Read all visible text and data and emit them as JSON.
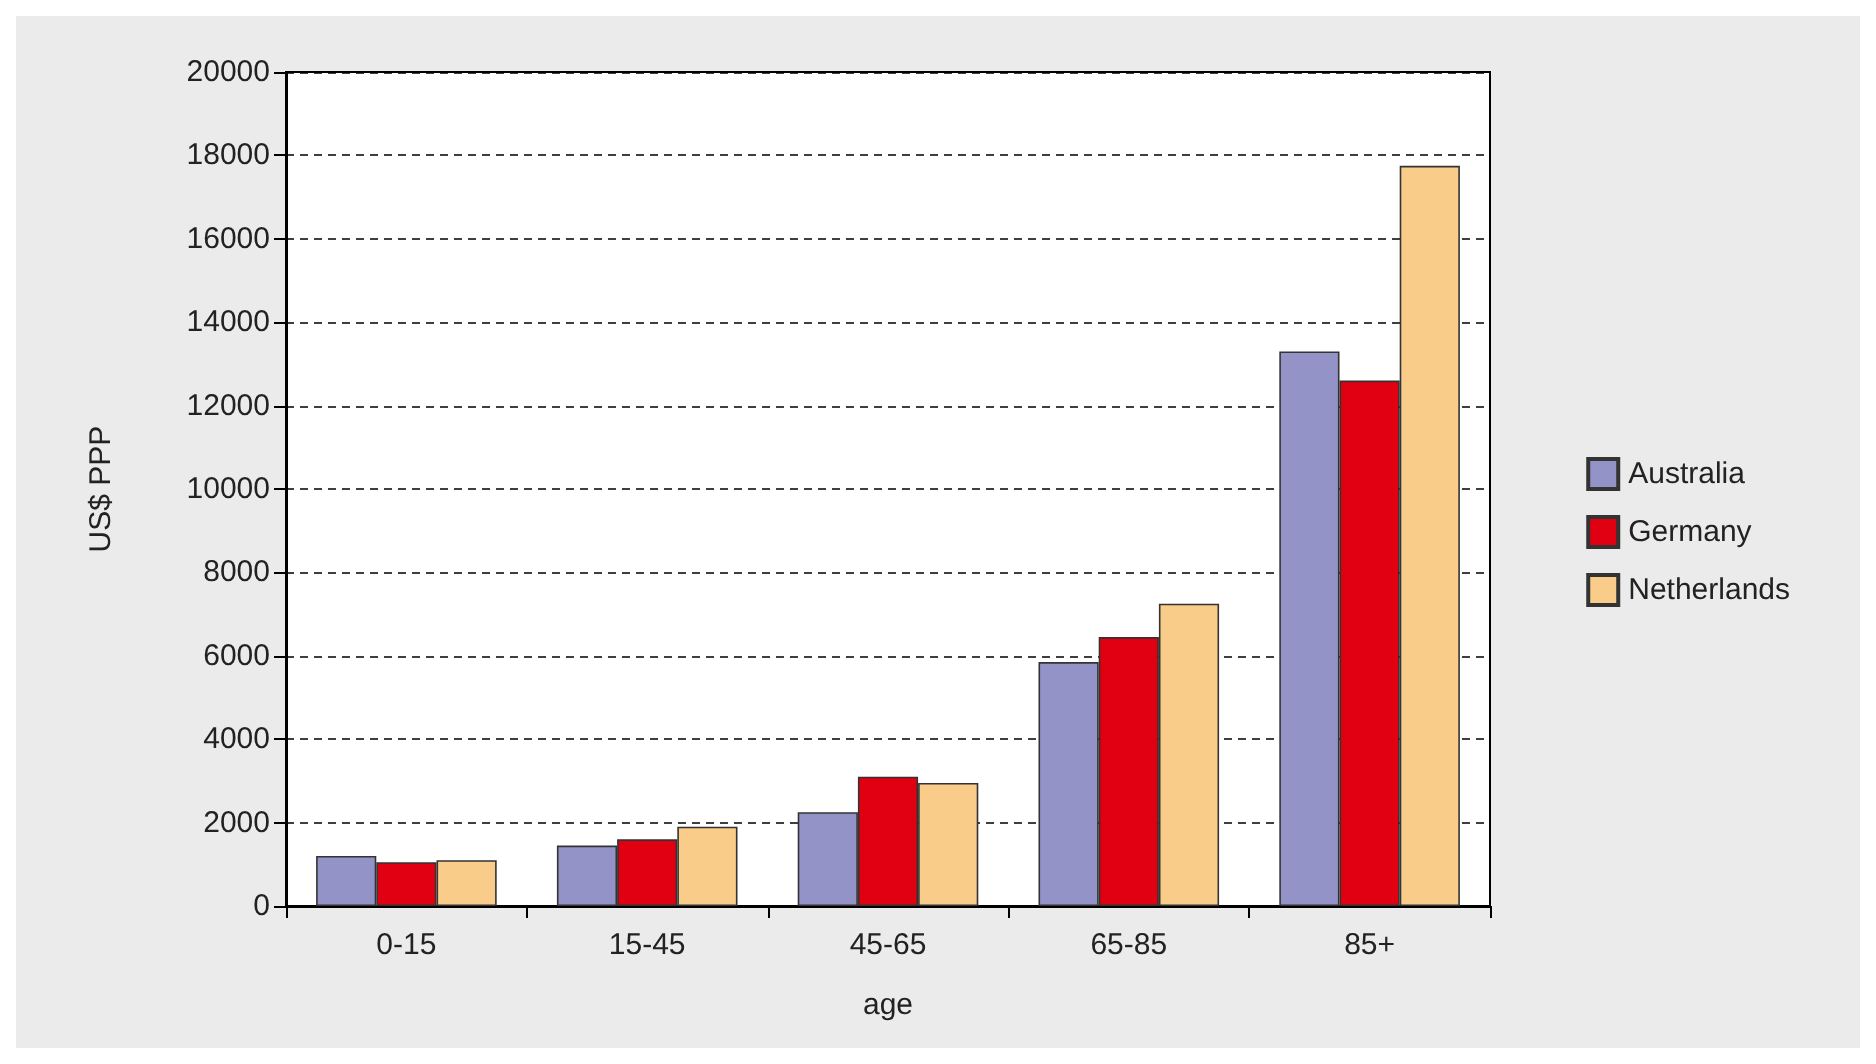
{
  "chart_data": {
    "type": "bar",
    "xlabel": "age",
    "ylabel": "US$ PPP",
    "categories": [
      "0-15",
      "15-45",
      "45-65",
      "65-85",
      "85+"
    ],
    "series": [
      {
        "name": "Australia",
        "color": "#9393c8",
        "values": [
          1200,
          1450,
          2250,
          5850,
          13300
        ]
      },
      {
        "name": "Germany",
        "color": "#e00012",
        "values": [
          1050,
          1600,
          3100,
          6450,
          12600
        ]
      },
      {
        "name": "Netherlands",
        "color": "#f9cc8a",
        "values": [
          1100,
          1900,
          2950,
          7250,
          17750
        ]
      }
    ],
    "ylim": [
      0,
      20000
    ],
    "yticks": [
      0,
      2000,
      4000,
      6000,
      8000,
      10000,
      12000,
      14000,
      16000,
      18000,
      20000
    ],
    "grid": "y",
    "legend": "right"
  }
}
